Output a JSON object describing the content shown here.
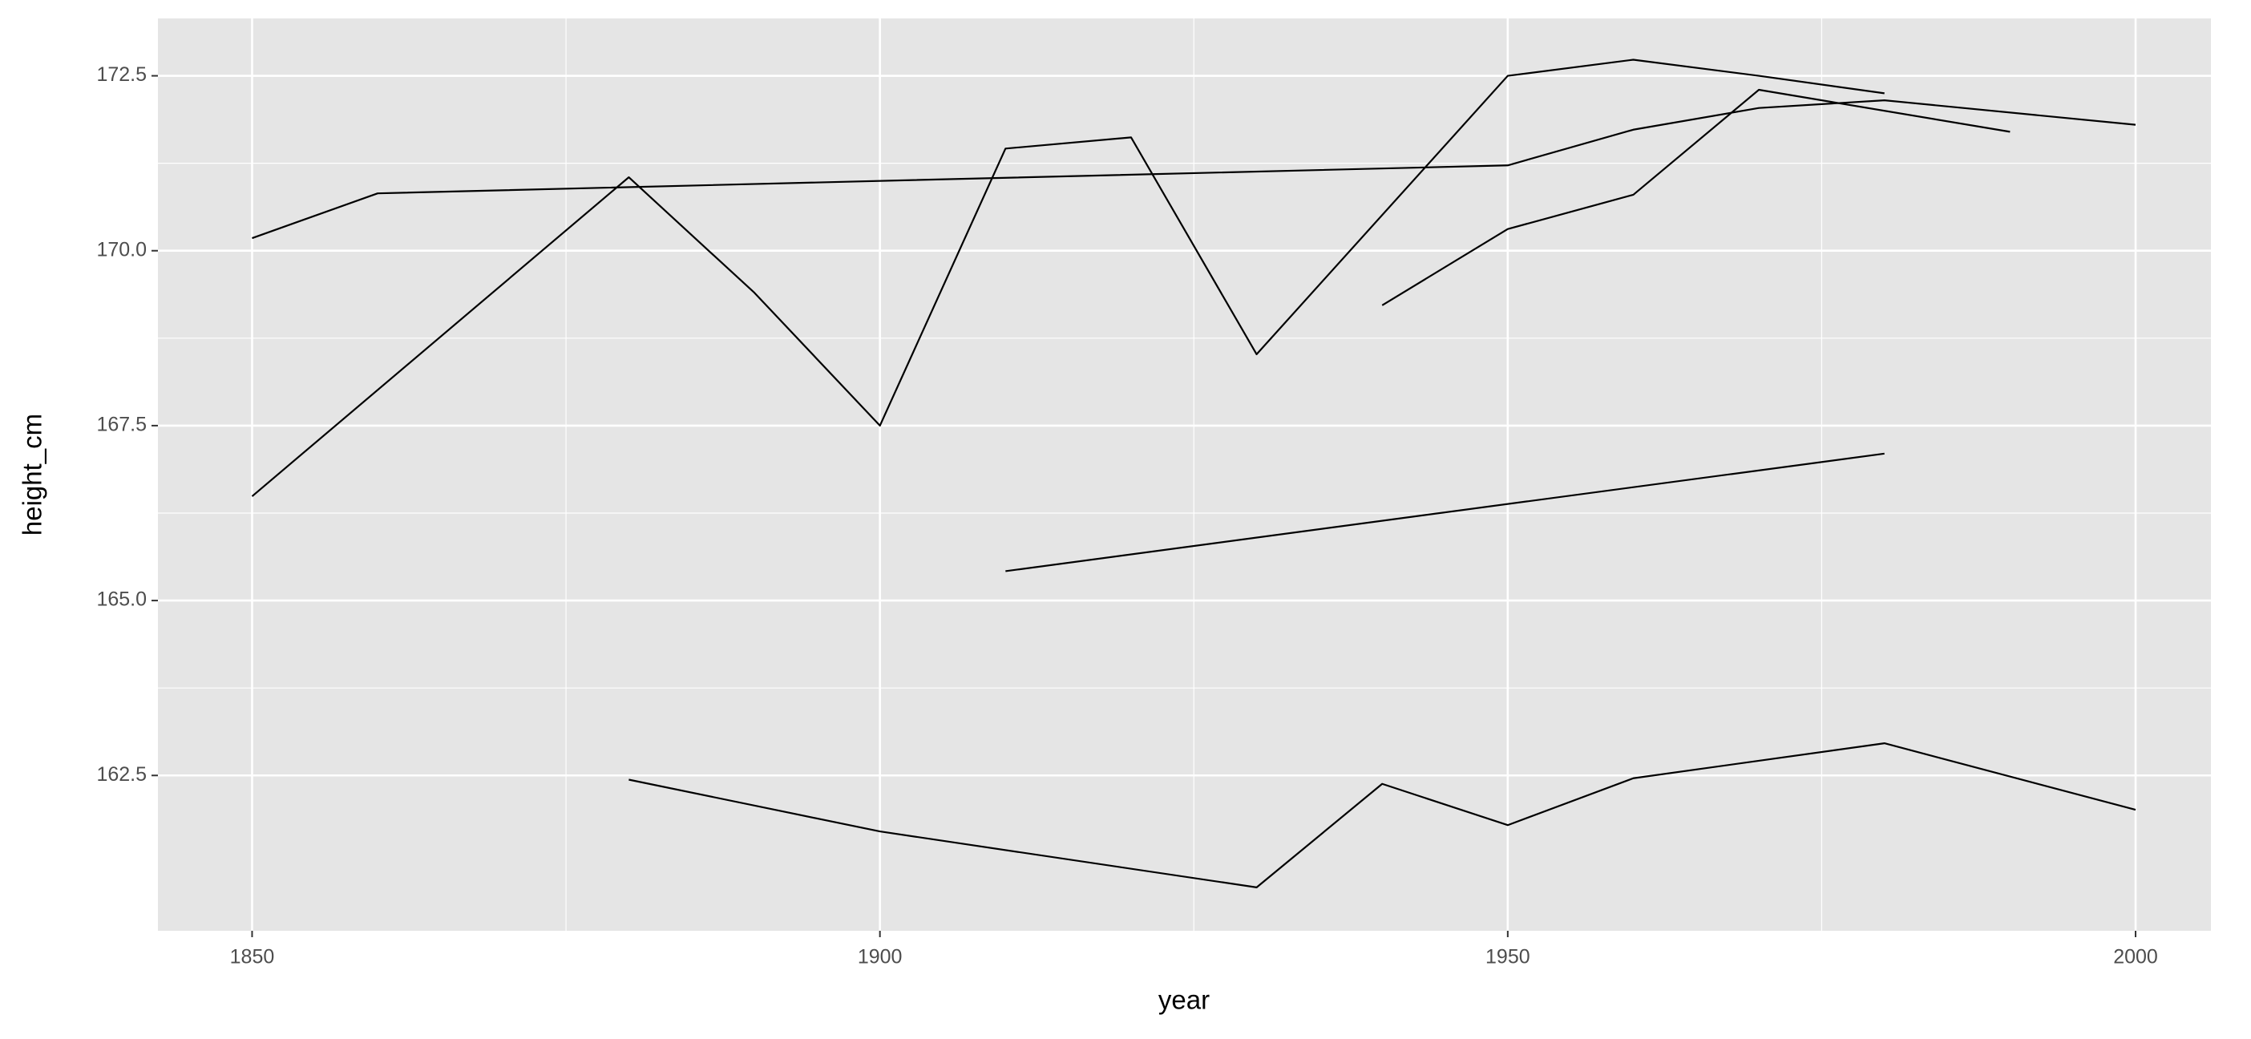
{
  "chart_data": {
    "type": "line",
    "x_label": "year",
    "y_label": "height_cm",
    "xlim": [
      1842.5,
      2006
    ],
    "ylim": [
      160.28,
      173.32
    ],
    "xticks": [
      1850,
      1900,
      1950,
      2000
    ],
    "yticks": [
      {
        "value": 162.5,
        "label": "162.5"
      },
      {
        "value": 165,
        "label": "165.0"
      },
      {
        "value": 167.5,
        "label": "167.5"
      },
      {
        "value": 170,
        "label": "170.0"
      },
      {
        "value": 172.5,
        "label": "172.5"
      }
    ],
    "grid": true,
    "series": [
      {
        "color": "#000000",
        "x": [
          1850,
          1860,
          1950,
          1960,
          1970,
          1980,
          2000
        ],
        "values": [
          170.18,
          170.82,
          171.22,
          171.73,
          172.04,
          172.15,
          171.8
        ]
      },
      {
        "color": "#000000",
        "x": [
          1940,
          1950,
          1960,
          1970,
          1990
        ],
        "values": [
          169.22,
          170.31,
          170.8,
          172.3,
          171.7
        ]
      },
      {
        "color": "#000000",
        "x": [
          1850,
          1880,
          1890,
          1900,
          1910,
          1920,
          1930,
          1950,
          1960,
          1970,
          1980
        ],
        "values": [
          166.49,
          171.05,
          169.4,
          167.5,
          171.46,
          171.62,
          168.52,
          172.5,
          172.73,
          172.5,
          172.25
        ]
      },
      {
        "color": "#000000",
        "x": [
          1910,
          1980
        ],
        "values": [
          165.42,
          167.1
        ]
      },
      {
        "color": "#000000",
        "x": [
          1880,
          1900,
          1930,
          1940,
          1950,
          1960,
          1980,
          2000
        ],
        "values": [
          162.44,
          161.7,
          160.9,
          162.38,
          161.79,
          162.46,
          162.96,
          162.01
        ]
      }
    ]
  }
}
